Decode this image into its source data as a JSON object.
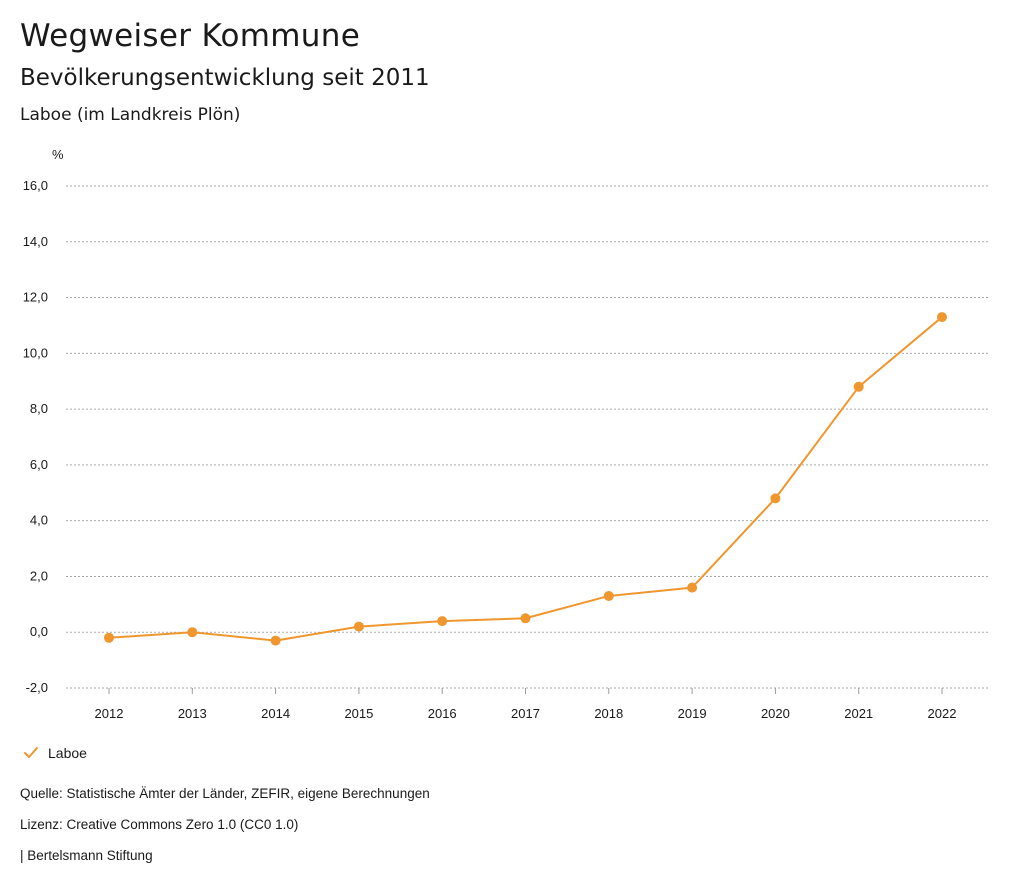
{
  "header": {
    "title": "Wegweiser Kommune",
    "subtitle": "Bevölkerungsentwicklung seit 2011",
    "region": "Laboe (im Landkreis Plön)"
  },
  "legend": {
    "label": "Laboe",
    "check_icon": "check-icon"
  },
  "footer": {
    "source": "Quelle: Statistische Ämter der Länder, ZEFIR, eigene Berechnungen",
    "license": "Lizenz: Creative Commons Zero 1.0 (CC0 1.0)",
    "publisher": "| Bertelsmann Stiftung"
  },
  "colors": {
    "series": "#f0962e",
    "grid": "#aaaaaa",
    "text": "#1a1a1a"
  },
  "chart_data": {
    "type": "line",
    "title": "Bevölkerungsentwicklung seit 2011",
    "ylabel": "%",
    "xlabel": "",
    "ylim": [
      -2,
      16
    ],
    "yticks": [
      -2,
      0,
      2,
      4,
      6,
      8,
      10,
      12,
      14,
      16
    ],
    "ytick_labels": [
      "-2,0",
      "0,0",
      "2,0",
      "4,0",
      "6,0",
      "8,0",
      "10,0",
      "12,0",
      "14,0",
      "16,0"
    ],
    "categories": [
      "2012",
      "2013",
      "2014",
      "2015",
      "2016",
      "2017",
      "2018",
      "2019",
      "2020",
      "2021",
      "2022"
    ],
    "series": [
      {
        "name": "Laboe",
        "values": [
          -0.2,
          0.0,
          -0.3,
          0.2,
          0.4,
          0.5,
          1.3,
          1.6,
          4.8,
          8.8,
          11.3
        ]
      }
    ],
    "grid": true,
    "legend_position": "bottom-left"
  }
}
